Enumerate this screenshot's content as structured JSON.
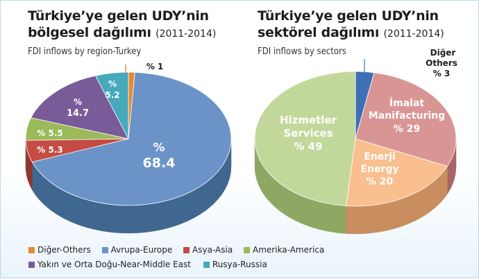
{
  "left": {
    "title_line1": "Türkiye’ye gelen UDY’nin",
    "title_line2": "bölgesel dağılımı",
    "title_years": "(2011-2014)",
    "subtitle": "FDI inflows by region-Turkey"
  },
  "right": {
    "title_line1": "Türkiye’ye gelen UDY’nin",
    "title_line2": "sektörel dağılımı",
    "title_years": "(2011-2014)",
    "subtitle": "FDI inflows by sectors"
  },
  "legend": [
    {
      "label": "Diğer-Others",
      "color": "#e58a2e"
    },
    {
      "label": "Avrupa-Europe",
      "color": "#6b93c7"
    },
    {
      "label": "Asya-Asia",
      "color": "#c54b45"
    },
    {
      "label": "Amerika-America",
      "color": "#9bba59"
    },
    {
      "label": "Yakın ve Orta Doğu-Near-Middle East",
      "color": "#7a5b99"
    },
    {
      "label": "Rusya-Russia",
      "color": "#46a9bc"
    }
  ],
  "chart_data": [
    {
      "type": "pie",
      "title": "Türkiye’ye gelen UDY’nin bölgesel dağılımı (2011-2014)",
      "subtitle": "FDI inflows by region-Turkey",
      "slices": [
        {
          "name": "Diğer-Others",
          "value": 1,
          "label_top": "% 1",
          "label_bottom": "",
          "color": "#e58a2e",
          "side": "#b86a1f"
        },
        {
          "name": "Avrupa-Europe",
          "value": 68.4,
          "label_top": "%",
          "label_bottom": "68.4",
          "color": "#6b93c7",
          "side": "#40678f"
        },
        {
          "name": "Asya-Asia",
          "value": 5.3,
          "label_top": "% 5.3",
          "label_bottom": "",
          "color": "#c54b45",
          "side": "#913530"
        },
        {
          "name": "Amerika-America",
          "value": 5.5,
          "label_top": "% 5.5",
          "label_bottom": "",
          "color": "#9bba59",
          "side": "#6f8b3b"
        },
        {
          "name": "Yakın ve Orta Doğu-Near-Middle East",
          "value": 14.7,
          "label_top": "%",
          "label_bottom": "14.7",
          "color": "#7a5b99",
          "side": "#56406f"
        },
        {
          "name": "Rusya-Russia",
          "value": 5.2,
          "label_top": "%",
          "label_bottom": "5.2",
          "color": "#46a9bc",
          "side": "#2e7d8c"
        }
      ]
    },
    {
      "type": "pie",
      "title": "Türkiye’ye gelen UDY’nin sektörel dağılımı (2011-2014)",
      "subtitle": "FDI inflows by sectors",
      "slices": [
        {
          "name": "Diğer Others",
          "value": 3,
          "lines": [
            "Diğer",
            "Others",
            "% 3"
          ],
          "color": "#3f6fb5",
          "side": "#2b4f85"
        },
        {
          "name": "İmalat Manifacturing",
          "value": 29,
          "lines": [
            "İmalat",
            "Manifacturing",
            "% 29"
          ],
          "color": "#d99594",
          "side": "#a86766"
        },
        {
          "name": "Enerji Energy",
          "value": 20,
          "lines": [
            "Enerji",
            "Energy",
            "% 20"
          ],
          "color": "#f9bf8e",
          "side": "#c98e5f"
        },
        {
          "name": "Hizmetler Services",
          "value": 49,
          "lines": [
            "Hizmetler",
            "Services",
            "% 49"
          ],
          "color": "#c2d89b",
          "side": "#8ea864"
        }
      ]
    }
  ]
}
